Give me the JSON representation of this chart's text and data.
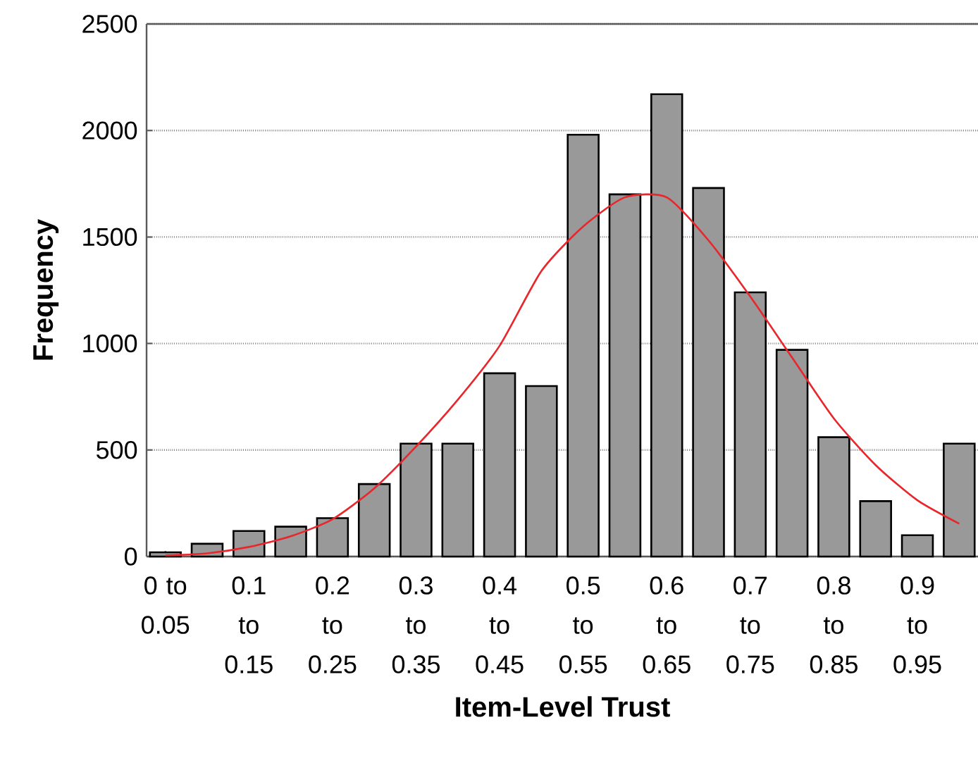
{
  "chart_data": {
    "type": "bar",
    "xlabel": "Item-Level Trust",
    "ylabel": "Frequency",
    "categories": [
      "0 to 0.05",
      null,
      "0.1 to 0.15",
      null,
      "0.2 to 0.25",
      null,
      "0.3 to 0.35",
      null,
      "0.4 to 0.45",
      null,
      "0.5 to 0.55",
      null,
      "0.6 to 0.65",
      null,
      "0.7 to 0.75",
      null,
      "0.8 to 0.85",
      null,
      "0.9 to 0.95",
      null
    ],
    "series": [
      {
        "color": "#000000",
        "values": [
          20,
          60,
          120,
          140,
          180,
          340,
          530,
          530,
          860,
          800,
          1980,
          1700,
          2170,
          1730,
          1240,
          970,
          560,
          260,
          100,
          530
        ]
      },
      {
        "type": "line",
        "color": "#e8262b",
        "line_style": "solid",
        "values": [
          5,
          15,
          45,
          95,
          175,
          320,
          516,
          736,
          989,
          1340,
          1549,
          1686,
          1686,
          1484,
          1220,
          934,
          648,
          429,
          264,
          154
        ]
      }
    ],
    "ylim": [
      0,
      2500
    ],
    "yticks": [
      0,
      500,
      1000,
      1500,
      2000,
      2500
    ],
    "grid": "y"
  }
}
